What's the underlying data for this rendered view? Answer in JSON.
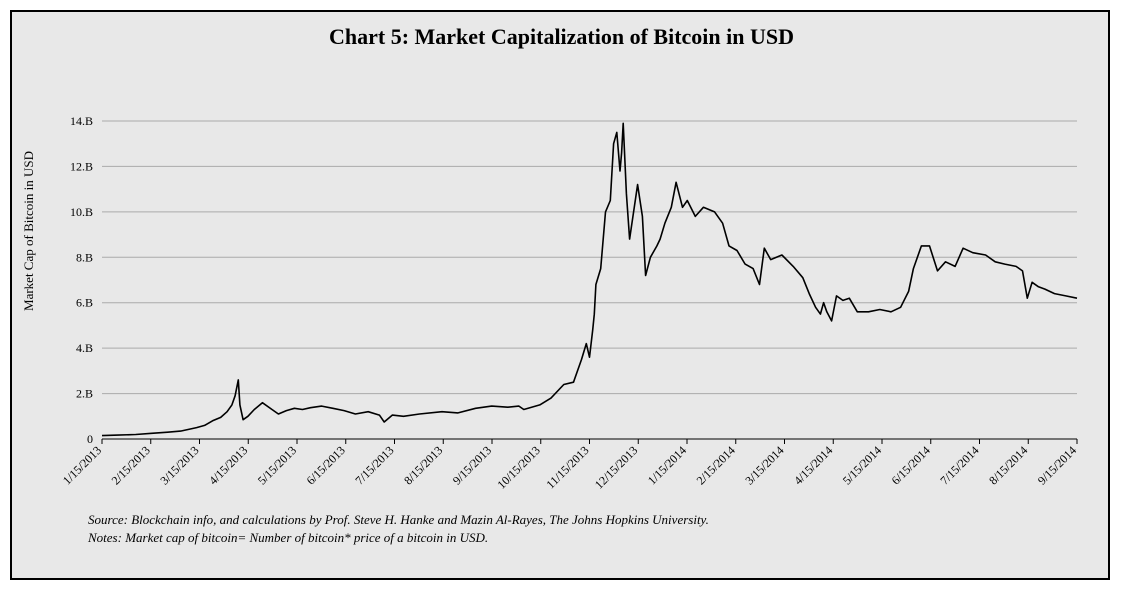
{
  "chart_data": {
    "type": "line",
    "title": "Chart 5: Market Capitalization of Bitcoin in USD",
    "ylabel": "Market Cap of Bitcoin in USD",
    "xlabel": "",
    "ylim": [
      0,
      14
    ],
    "yticks": [
      0,
      2,
      4,
      6,
      8,
      10,
      12,
      14
    ],
    "ytick_labels": [
      "0",
      "2.B",
      "4.B",
      "6.B",
      "8.B",
      "10.B",
      "12.B",
      "14.B"
    ],
    "xtick_labels": [
      "1/15/2013",
      "2/15/2013",
      "3/15/2013",
      "4/15/2013",
      "5/15/2013",
      "6/15/2013",
      "7/15/2013",
      "8/15/2013",
      "9/15/2013",
      "10/15/2013",
      "11/15/2013",
      "12/15/2013",
      "1/15/2014",
      "2/15/2014",
      "3/15/2014",
      "4/15/2014",
      "5/15/2014",
      "6/15/2014",
      "7/15/2014",
      "8/15/2014",
      "9/15/2014"
    ],
    "grid": true,
    "series": [
      {
        "x": [
          "2013-01-15",
          "2013-01-25",
          "2013-02-05",
          "2013-02-15",
          "2013-02-25",
          "2013-03-05",
          "2013-03-15",
          "2013-03-20",
          "2013-03-25",
          "2013-03-30",
          "2013-04-03",
          "2013-04-06",
          "2013-04-08",
          "2013-04-10",
          "2013-04-11",
          "2013-04-13",
          "2013-04-16",
          "2013-04-20",
          "2013-04-25",
          "2013-05-01",
          "2013-05-05",
          "2013-05-10",
          "2013-05-15",
          "2013-05-20",
          "2013-05-25",
          "2013-06-01",
          "2013-06-08",
          "2013-06-15",
          "2013-06-22",
          "2013-06-30",
          "2013-07-07",
          "2013-07-10",
          "2013-07-15",
          "2013-07-22",
          "2013-08-01",
          "2013-08-15",
          "2013-08-25",
          "2013-09-05",
          "2013-09-15",
          "2013-09-25",
          "2013-10-02",
          "2013-10-05",
          "2013-10-15",
          "2013-10-22",
          "2013-10-30",
          "2013-11-05",
          "2013-11-10",
          "2013-11-13",
          "2013-11-15",
          "2013-11-17",
          "2013-11-18",
          "2013-11-19",
          "2013-11-22",
          "2013-11-25",
          "2013-11-28",
          "2013-11-30",
          "2013-12-02",
          "2013-12-04",
          "2013-12-05",
          "2013-12-06",
          "2013-12-08",
          "2013-12-10",
          "2013-12-15",
          "2013-12-18",
          "2013-12-20",
          "2013-12-23",
          "2013-12-27",
          "2013-12-29",
          "2014-01-01",
          "2014-01-05",
          "2014-01-08",
          "2014-01-12",
          "2014-01-15",
          "2014-01-20",
          "2014-01-25",
          "2014-02-01",
          "2014-02-06",
          "2014-02-10",
          "2014-02-15",
          "2014-02-20",
          "2014-02-25",
          "2014-03-01",
          "2014-03-04",
          "2014-03-08",
          "2014-03-15",
          "2014-03-22",
          "2014-03-28",
          "2014-04-01",
          "2014-04-05",
          "2014-04-08",
          "2014-04-10",
          "2014-04-12",
          "2014-04-15",
          "2014-04-18",
          "2014-04-22",
          "2014-04-26",
          "2014-05-01",
          "2014-05-08",
          "2014-05-15",
          "2014-05-22",
          "2014-05-28",
          "2014-06-02",
          "2014-06-05",
          "2014-06-10",
          "2014-06-15",
          "2014-06-20",
          "2014-06-25",
          "2014-07-01",
          "2014-07-06",
          "2014-07-12",
          "2014-07-20",
          "2014-07-26",
          "2014-08-01",
          "2014-08-08",
          "2014-08-12",
          "2014-08-15",
          "2014-08-18",
          "2014-08-22",
          "2014-08-26",
          "2014-09-01",
          "2014-09-08",
          "2014-09-15"
        ],
        "y": [
          0.15,
          0.17,
          0.2,
          0.25,
          0.3,
          0.35,
          0.5,
          0.6,
          0.8,
          0.95,
          1.2,
          1.5,
          1.9,
          2.6,
          1.5,
          0.85,
          1.0,
          1.3,
          1.6,
          1.3,
          1.1,
          1.25,
          1.35,
          1.3,
          1.38,
          1.45,
          1.35,
          1.25,
          1.1,
          1.2,
          1.05,
          0.75,
          1.05,
          1.0,
          1.1,
          1.2,
          1.15,
          1.35,
          1.45,
          1.4,
          1.45,
          1.3,
          1.5,
          1.8,
          2.4,
          2.5,
          3.5,
          4.2,
          3.6,
          4.8,
          5.5,
          6.8,
          7.5,
          10.0,
          10.5,
          13.0,
          13.5,
          11.8,
          12.6,
          13.9,
          10.8,
          8.8,
          11.2,
          9.8,
          7.2,
          8.0,
          8.5,
          8.8,
          9.5,
          10.2,
          11.3,
          10.2,
          10.5,
          9.8,
          10.2,
          10.0,
          9.5,
          8.5,
          8.3,
          7.7,
          7.5,
          6.8,
          8.4,
          7.9,
          8.1,
          7.6,
          7.1,
          6.4,
          5.8,
          5.5,
          6.0,
          5.6,
          5.2,
          6.3,
          6.1,
          6.2,
          5.6,
          5.6,
          5.7,
          5.6,
          5.8,
          6.5,
          7.5,
          8.5,
          8.5,
          7.4,
          7.8,
          7.6,
          8.4,
          8.2,
          8.1,
          7.8,
          7.7,
          7.6,
          7.4,
          6.2,
          6.9,
          6.7,
          6.6,
          6.4,
          6.3,
          6.2
        ]
      }
    ]
  },
  "notes": {
    "source": "Source: Blockchain info, and calculations by Prof. Steve H. Hanke and Mazin Al-Rayes, The Johns Hopkins University.",
    "note": "Notes: Market cap of bitcoin= Number of bitcoin* price of a bitcoin in USD."
  }
}
